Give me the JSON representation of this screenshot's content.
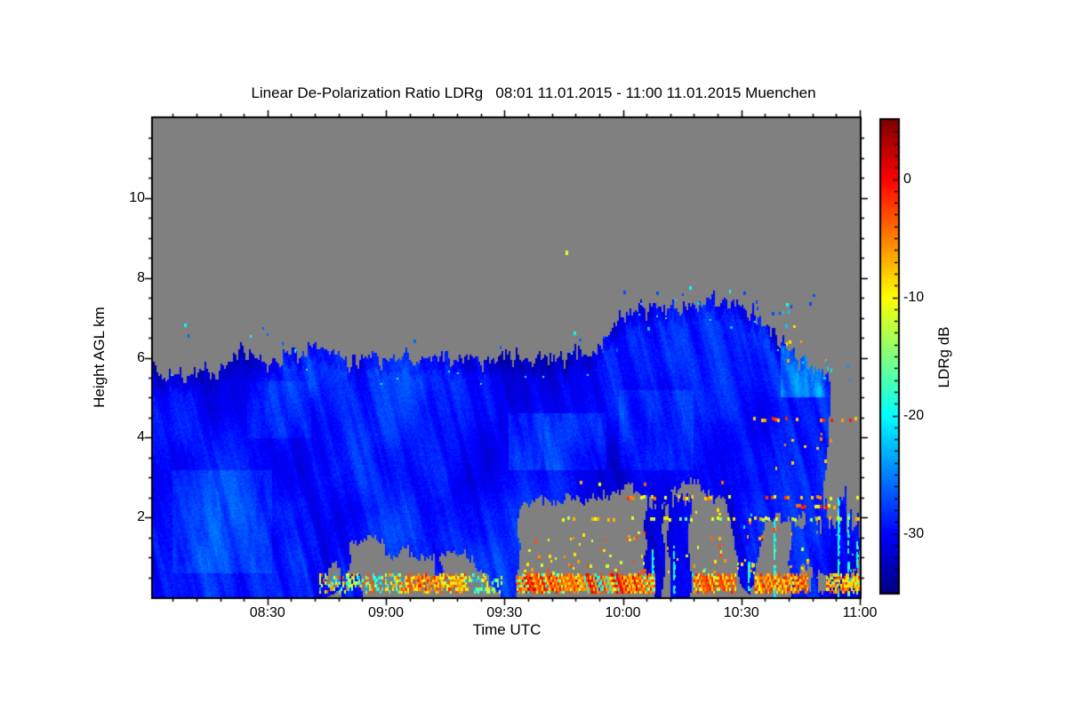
{
  "chart_data": {
    "type": "heatmap",
    "title": "Linear De-Polarization Ratio LDRg   08:01 11.01.2015 - 11:00 11.01.2015 Muenchen",
    "quantity": "Linear De-Polarization Ratio",
    "quantity_short": "LDRg",
    "time_start": "08:01 11.01.2015",
    "time_end": "11:00 11.01.2015",
    "station": "Muenchen",
    "xlabel": "Time UTC",
    "ylabel": "Height AGL km",
    "x_range_minutes_after_start": [
      0,
      179
    ],
    "x_ticks": [
      {
        "label": "08:30",
        "minute": 29
      },
      {
        "label": "09:00",
        "minute": 59
      },
      {
        "label": "09:30",
        "minute": 89
      },
      {
        "label": "10:00",
        "minute": 119
      },
      {
        "label": "10:30",
        "minute": 149
      },
      {
        "label": "11:00",
        "minute": 179
      }
    ],
    "x_minor_tick_every_minutes": 6,
    "x_first_minor_minute": 5,
    "y_range_km": [
      0,
      12
    ],
    "y_ticks_km": [
      2,
      4,
      6,
      8,
      10
    ],
    "y_minor_tick_km": 0.5,
    "colorbar": {
      "label": "LDRg dB",
      "range_db": [
        -35,
        5
      ],
      "ticks_db": [
        0,
        -10,
        -20,
        -30
      ],
      "minor_tick_db": 1,
      "colormap": "jet"
    },
    "no_data_color": "#808080",
    "grid": false,
    "legend": false,
    "features": {
      "cloud": {
        "mean_db": -29.4,
        "large_amp_db": 3.4,
        "streak_amp_db": 2.3,
        "top_fringe_darken_db": 1.3,
        "value_clamp_db": [
          -33.8,
          -22.0
        ]
      },
      "cloud_top_profile": [
        [
          0,
          5.9
        ],
        [
          2,
          5.45
        ],
        [
          5,
          5.65
        ],
        [
          8,
          5.5
        ],
        [
          12,
          5.75
        ],
        [
          16,
          5.6
        ],
        [
          20,
          5.95
        ],
        [
          23,
          6.25
        ],
        [
          26,
          6.0
        ],
        [
          30,
          5.85
        ],
        [
          34,
          6.15
        ],
        [
          38,
          6.05
        ],
        [
          41,
          6.35
        ],
        [
          44,
          6.25
        ],
        [
          47,
          6.05
        ],
        [
          51,
          5.9
        ],
        [
          55,
          6.05
        ],
        [
          59,
          5.9
        ],
        [
          63,
          6.1
        ],
        [
          67,
          5.95
        ],
        [
          71,
          6.05
        ],
        [
          75,
          5.95
        ],
        [
          79,
          6.05
        ],
        [
          83,
          5.9
        ],
        [
          87,
          6.0
        ],
        [
          91,
          6.05
        ],
        [
          95,
          5.95
        ],
        [
          99,
          6.05
        ],
        [
          103,
          6.0
        ],
        [
          107,
          6.15
        ],
        [
          110,
          6.1
        ],
        [
          113,
          6.3
        ],
        [
          115,
          6.5
        ],
        [
          117,
          6.9
        ],
        [
          119,
          7.05
        ],
        [
          122,
          7.2
        ],
        [
          126,
          7.3
        ],
        [
          130,
          7.3
        ],
        [
          134,
          7.25
        ],
        [
          138,
          7.35
        ],
        [
          142,
          7.45
        ],
        [
          145,
          7.5
        ],
        [
          148,
          7.35
        ],
        [
          151,
          7.15
        ],
        [
          154,
          6.95
        ],
        [
          157,
          6.6
        ],
        [
          160,
          6.35
        ],
        [
          163,
          6.1
        ],
        [
          165,
          5.95
        ],
        [
          167,
          5.8
        ],
        [
          169,
          5.65
        ],
        [
          170.5,
          5.55
        ],
        [
          171.5,
          5.4
        ],
        [
          171.8,
          -1
        ],
        [
          179,
          -1
        ]
      ],
      "cloud_base_profile": [
        [
          0,
          0
        ],
        [
          44,
          0
        ],
        [
          46,
          0.1
        ],
        [
          50,
          0.35
        ],
        [
          53,
          0.8
        ],
        [
          56,
          1.15
        ],
        [
          60,
          0.95
        ],
        [
          64,
          1.25
        ],
        [
          68,
          0.75
        ],
        [
          72,
          0.45
        ],
        [
          76,
          0.85
        ],
        [
          80,
          1.05
        ],
        [
          84,
          0.6
        ],
        [
          86,
          0.3
        ],
        [
          88,
          0.05
        ],
        [
          91,
          0.05
        ],
        [
          92.5,
          2.0
        ],
        [
          94,
          2.35
        ],
        [
          98,
          2.45
        ],
        [
          102,
          2.4
        ],
        [
          106,
          2.55
        ],
        [
          110,
          2.45
        ],
        [
          114,
          2.55
        ],
        [
          118,
          2.6
        ],
        [
          121,
          2.85
        ],
        [
          124,
          2.5
        ],
        [
          127,
          2.35
        ],
        [
          130,
          2.4
        ],
        [
          133,
          2.8
        ],
        [
          136,
          3.0
        ],
        [
          139,
          2.75
        ],
        [
          142,
          2.5
        ],
        [
          145,
          2.45
        ],
        [
          147.5,
          1.2
        ],
        [
          149,
          0.3
        ],
        [
          151,
          0.05
        ],
        [
          153,
          0.8
        ],
        [
          155,
          1.95
        ],
        [
          158,
          2.05
        ],
        [
          161,
          1.95
        ],
        [
          164,
          2.05
        ],
        [
          167,
          2.0
        ],
        [
          169,
          2.1
        ],
        [
          170.5,
          3.2
        ],
        [
          171.5,
          4.6
        ],
        [
          171.8,
          99
        ],
        [
          179,
          99
        ]
      ],
      "blue_columns": [
        {
          "t": [
            48.5,
            53
          ],
          "h": [
            0,
            1.7
          ]
        },
        {
          "t": [
            87,
            92.5
          ],
          "h": [
            0,
            2.1
          ]
        },
        {
          "t": [
            124.8,
            129.3
          ],
          "h": [
            0,
            2.4
          ]
        },
        {
          "t": [
            130.8,
            135.8
          ],
          "h": [
            0,
            2.5
          ]
        },
        {
          "t": [
            161.5,
            179
          ],
          "h": [
            0,
            1.85
          ],
          "jitter": 1.6
        },
        {
          "t": [
            165.5,
            167.5
          ],
          "h": [
            0,
            2.5
          ]
        },
        {
          "t": [
            169.5,
            171
          ],
          "h": [
            0,
            2.4
          ]
        },
        {
          "t": [
            173.5,
            175.5
          ],
          "h": [
            0,
            2.6
          ]
        }
      ],
      "gray_holes": [
        {
          "t": [
            44,
            47.5
          ],
          "h": [
            0.35,
            0.85
          ]
        },
        {
          "t": [
            49.5,
            58
          ],
          "h": [
            0.55,
            1.45
          ]
        },
        {
          "t": [
            58,
            71
          ],
          "h": [
            0.12,
            1.0
          ]
        },
        {
          "t": [
            73,
            79
          ],
          "h": [
            0.55,
            1.1
          ]
        },
        {
          "t": [
            163.5,
            166.5
          ],
          "h": [
            0.2,
            0.75
          ]
        },
        {
          "t": [
            168,
            171
          ],
          "h": [
            0.15,
            0.6
          ]
        },
        {
          "t": [
            176,
            178
          ],
          "h": [
            0.3,
            0.7
          ]
        }
      ],
      "ground_gray_strips": [
        {
          "t": [
            55,
            88
          ],
          "h": [
            0,
            0.13
          ]
        },
        {
          "t": [
            92,
            127
          ],
          "h": [
            0,
            0.14
          ]
        },
        {
          "t": [
            137,
            147
          ],
          "h": [
            0,
            0.11
          ]
        },
        {
          "t": [
            153,
            160
          ],
          "h": [
            0,
            0.09
          ]
        }
      ],
      "band_rows_km": [
        0.14,
        0.21,
        0.28,
        0.35,
        0.42,
        0.49,
        0.56
      ],
      "surface_band_segments": [
        {
          "t": [
            42,
            64
          ],
          "density": 0.5,
          "palette_db": [
            -9,
            -12,
            -6,
            -15,
            -19,
            -23,
            -3,
            -11
          ]
        },
        {
          "t": [
            64,
            79
          ],
          "density": 0.7,
          "palette_db": [
            -6,
            -9,
            -3,
            -12,
            -1,
            -6
          ]
        },
        {
          "t": [
            79,
            88.5
          ],
          "density": 0.3,
          "palette_db": [
            -12,
            -16,
            -9,
            -22
          ]
        },
        {
          "t": [
            92,
            127
          ],
          "density": 0.9,
          "palette_db": [
            -3,
            -3,
            -6,
            -6,
            -1,
            -9,
            -5,
            -12,
            1,
            -19
          ]
        },
        {
          "t": [
            137,
            147.5
          ],
          "density": 0.8,
          "palette_db": [
            -6,
            -9,
            -3,
            -12,
            -1,
            -3
          ]
        },
        {
          "t": [
            152.5,
            166
          ],
          "density": 0.78,
          "palette_db": [
            -5,
            -8,
            -2,
            -11,
            -1,
            -5
          ]
        },
        {
          "t": [
            170.5,
            179
          ],
          "density": 0.72,
          "palette_db": [
            -8,
            -6,
            -11,
            -5,
            -14,
            -2,
            -9
          ]
        }
      ],
      "dotted_lines": [
        {
          "h": 4.45,
          "t": [
            152,
            179
          ],
          "density": 0.42,
          "palette_db": [
            -3,
            -6,
            -1,
            -8
          ]
        },
        {
          "h": 2.85,
          "t": [
            108,
            148
          ],
          "density": 0.15,
          "palette_db": [
            -4,
            -7,
            -10
          ]
        },
        {
          "h": 2.5,
          "t": [
            120,
            179
          ],
          "density": 0.28,
          "palette_db": [
            -5,
            -8,
            -11,
            -2
          ]
        },
        {
          "h": 2.27,
          "t": [
            160,
            179
          ],
          "density": 0.35,
          "palette_db": [
            -4,
            -7,
            -11,
            -1
          ]
        },
        {
          "h": 1.97,
          "t": [
            103,
            179
          ],
          "density": 0.45,
          "palette_db": [
            -11,
            -13,
            -9,
            -15,
            -7
          ]
        },
        {
          "h": 1.5,
          "t": [
            135,
            158
          ],
          "density": 0.12,
          "palette_db": [
            -4,
            -7
          ]
        }
      ],
      "speck_fields": [
        {
          "t": [
            93,
            127
          ],
          "h": [
            0.6,
            1.6
          ],
          "count": 50,
          "palette_db": [
            -6,
            -9,
            -3,
            -12
          ]
        },
        {
          "t": [
            128,
            165
          ],
          "h": [
            0.4,
            2.2
          ],
          "count": 28,
          "palette_db": [
            -6,
            -9,
            -12,
            -20,
            -3
          ]
        },
        {
          "t": [
            150,
            172
          ],
          "h": [
            3.0,
            4.2
          ],
          "count": 10,
          "palette_db": [
            -5,
            -8
          ]
        },
        {
          "t": [
            137,
            166
          ],
          "h": [
            0.55,
            0.95
          ],
          "count": 20,
          "palette_db": [
            -6,
            -9
          ]
        },
        {
          "t": [
            118,
            172
          ],
          "h": [
            6.6,
            7.9
          ],
          "count": 22,
          "palette_db": [
            -20,
            -22,
            -27
          ]
        },
        {
          "t": [
            0,
            118
          ],
          "h": [
            6.1,
            6.9
          ],
          "count": 14,
          "palette_db": [
            -20,
            -26
          ]
        },
        {
          "t": [
            160,
            172
          ],
          "h": [
            5.8,
            6.8
          ],
          "count": 6,
          "palette_db": [
            -6,
            -9
          ]
        },
        {
          "t": [
            168,
            179
          ],
          "h": [
            5.3,
            5.9
          ],
          "count": 6,
          "palette_db": [
            -21,
            -24
          ]
        }
      ],
      "single_specks": [
        {
          "t": 104.6,
          "h": 8.64,
          "value_db": -11
        }
      ],
      "cyan_streaks": [
        {
          "t": 157.2,
          "h": [
            0,
            2.0
          ]
        },
        {
          "t": 173.4,
          "h": [
            0,
            2.5
          ]
        },
        {
          "t": 175.9,
          "h": [
            0,
            2.1
          ]
        },
        {
          "t": 178.2,
          "h": [
            0,
            1.4
          ]
        },
        {
          "t": 150.6,
          "h": [
            0,
            0.9
          ]
        },
        {
          "t": 131.8,
          "h": [
            0.1,
            1.3
          ]
        },
        {
          "t": 126.3,
          "h": [
            0.2,
            1.2
          ]
        }
      ],
      "bright_regions": [
        {
          "t": [
            159,
            170
          ],
          "h": [
            5.0,
            6.3
          ],
          "boost_db": 6
        },
        {
          "t": [
            90,
            115
          ],
          "h": [
            3.2,
            4.6
          ],
          "boost_db": 2.5
        },
        {
          "t": [
            118,
            137
          ],
          "h": [
            3.2,
            5.2
          ],
          "boost_db": 2
        },
        {
          "t": [
            5,
            30
          ],
          "h": [
            0.6,
            3.2
          ],
          "boost_db": 2
        },
        {
          "t": [
            24,
            40
          ],
          "h": [
            4.0,
            5.4
          ],
          "boost_db": 1.5
        }
      ]
    }
  }
}
